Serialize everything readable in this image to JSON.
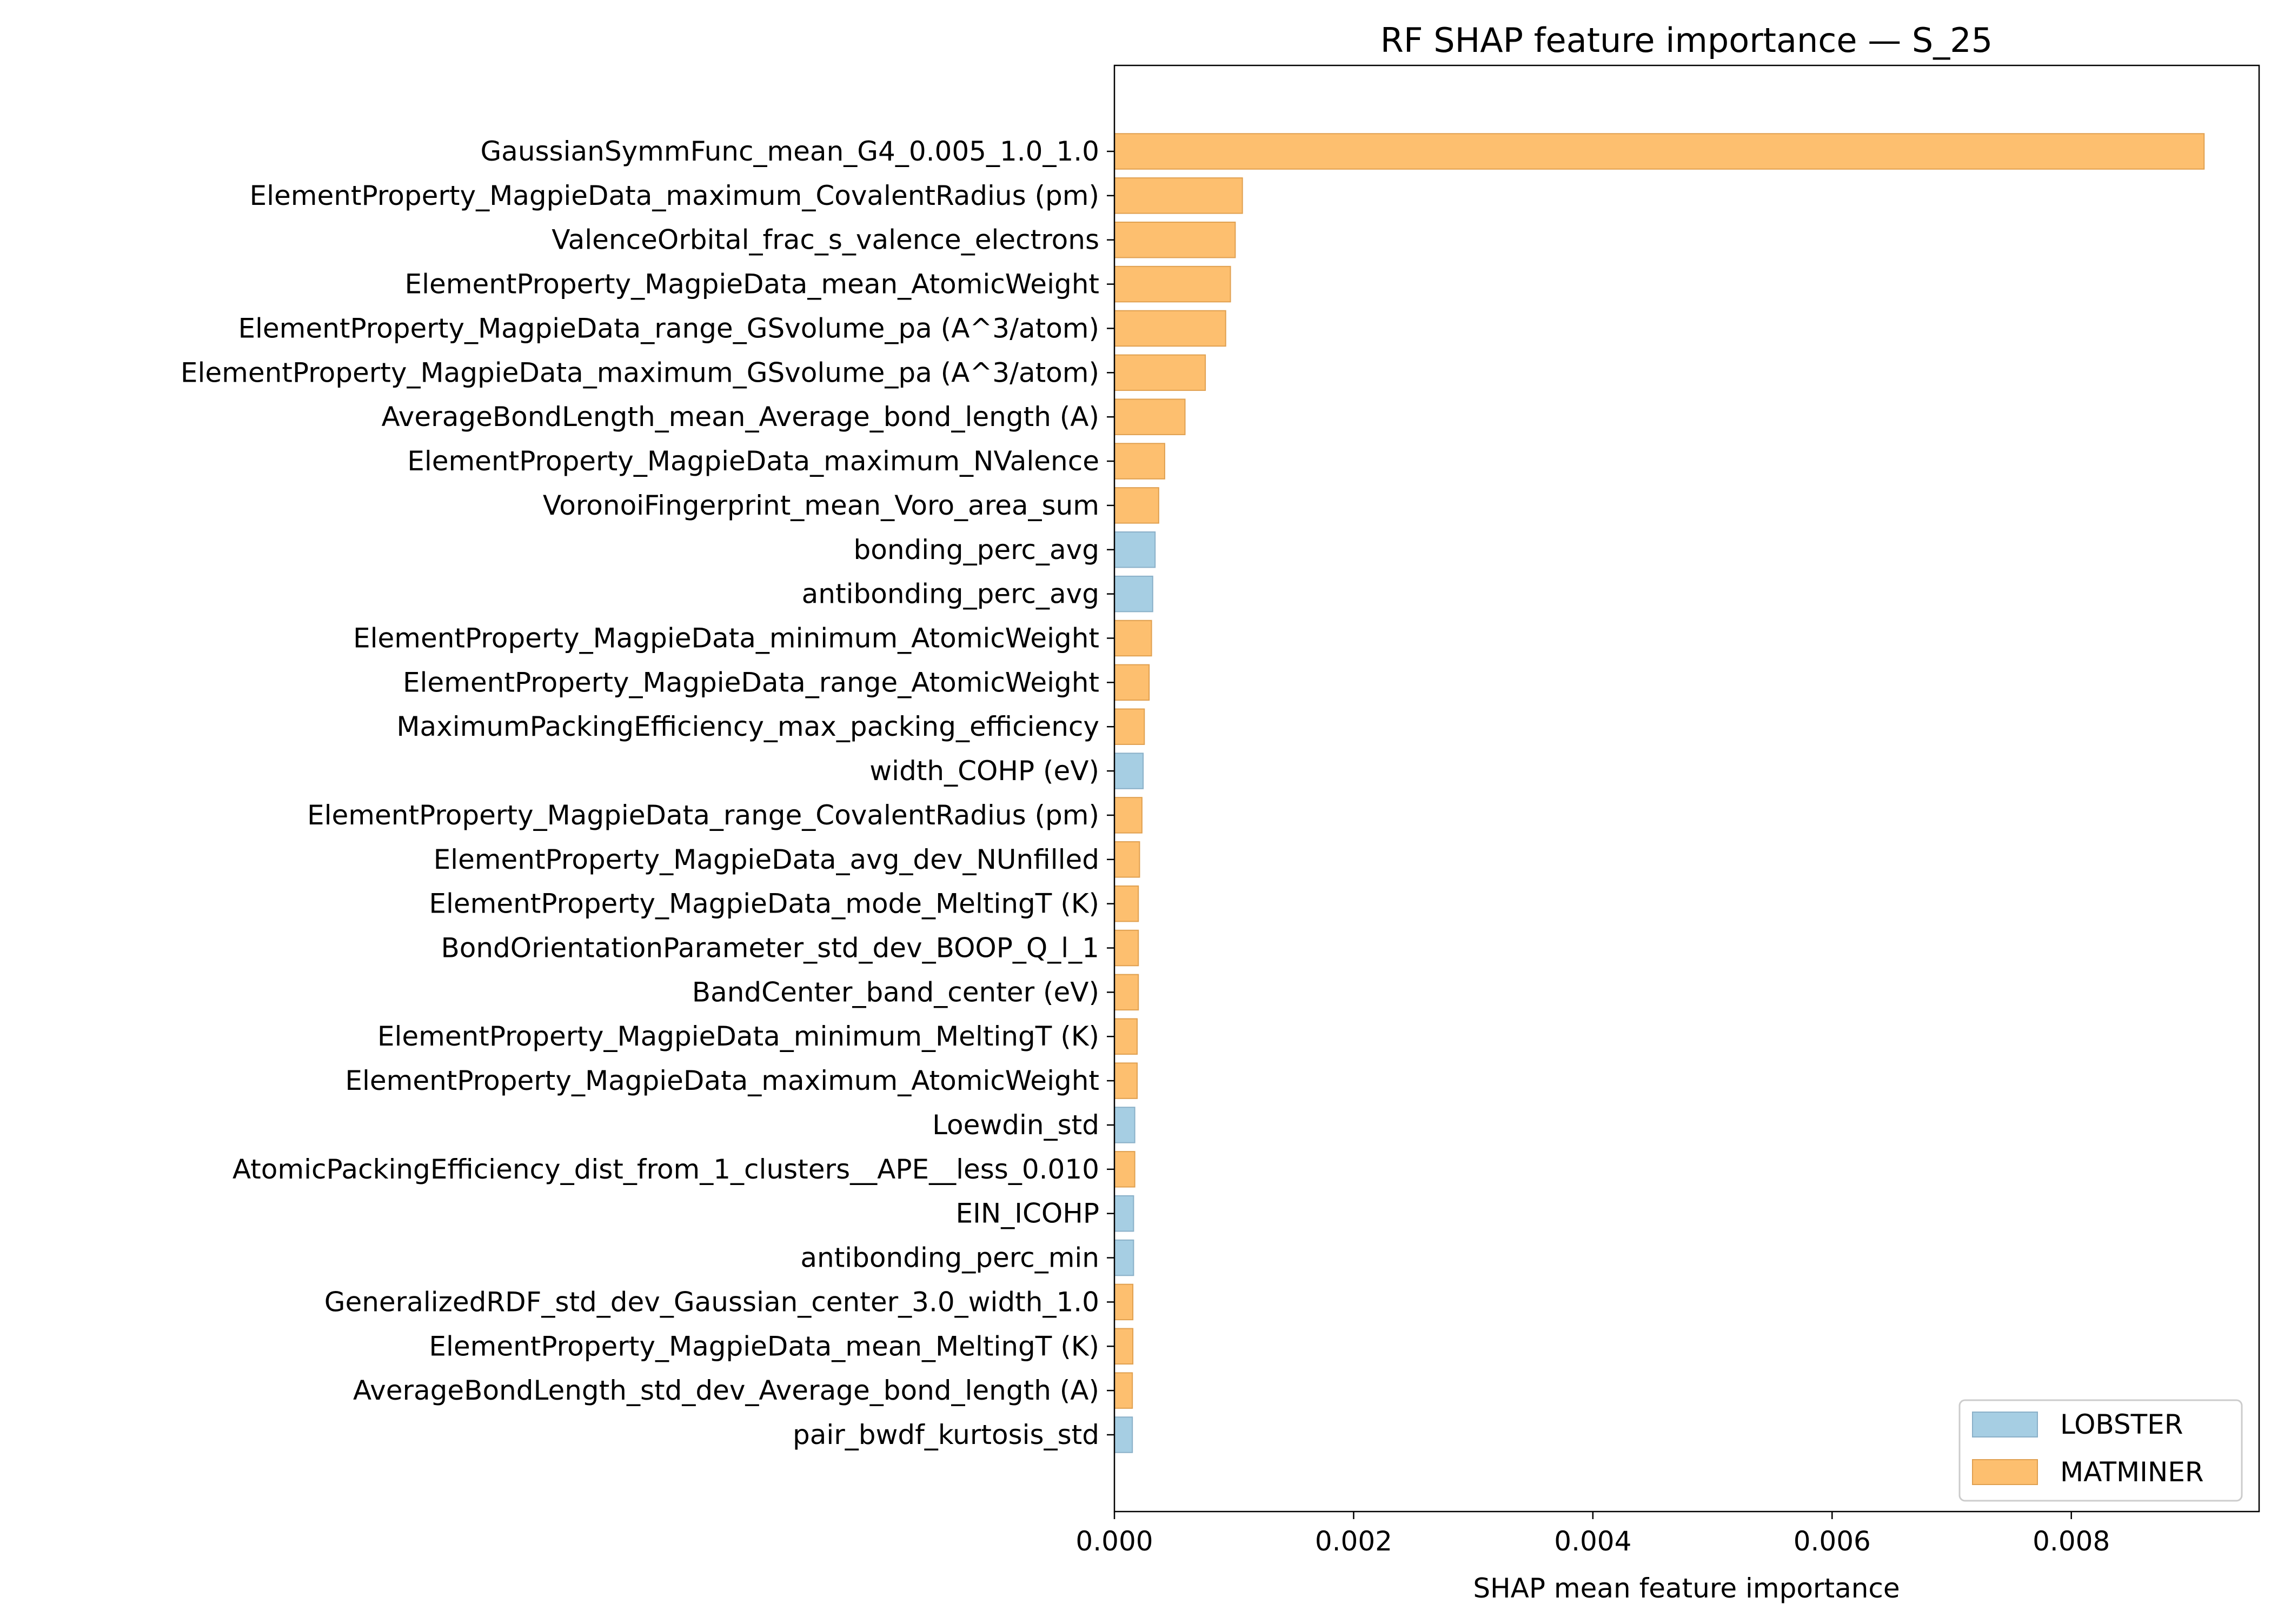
{
  "chart_data": {
    "type": "bar",
    "orientation": "horizontal",
    "title": "RF SHAP feature importance — S_25",
    "xlabel": "SHAP mean feature importance",
    "ylabel": "",
    "xlim": [
      0,
      0.00957
    ],
    "xticks": [
      "0.000",
      "0.002",
      "0.004",
      "0.006",
      "0.008"
    ],
    "xtick_values": [
      0,
      0.002,
      0.004,
      0.006,
      0.008
    ],
    "grid": false,
    "legend": {
      "placement": "lower-right",
      "entries": [
        {
          "name": "LOBSTER",
          "color": "#a6cee3"
        },
        {
          "name": "MATMINER",
          "color": "#fdbf6f"
        }
      ]
    },
    "bars": [
      {
        "label": "GaussianSymmFunc_mean_G4_0.005_1.0_1.0",
        "value": 0.00911,
        "group": "MATMINER"
      },
      {
        "label": "ElementProperty_MagpieData_maximum_CovalentRadius (pm)",
        "value": 0.00107,
        "group": "MATMINER"
      },
      {
        "label": "ValenceOrbital_frac_s_valence_electrons",
        "value": 0.00101,
        "group": "MATMINER"
      },
      {
        "label": "ElementProperty_MagpieData_mean_AtomicWeight",
        "value": 0.00097,
        "group": "MATMINER"
      },
      {
        "label": "ElementProperty_MagpieData_range_GSvolume_pa (A^3/atom)",
        "value": 0.00093,
        "group": "MATMINER"
      },
      {
        "label": "ElementProperty_MagpieData_maximum_GSvolume_pa (A^3/atom)",
        "value": 0.00076,
        "group": "MATMINER"
      },
      {
        "label": "AverageBondLength_mean_Average_bond_length (A)",
        "value": 0.00059,
        "group": "MATMINER"
      },
      {
        "label": "ElementProperty_MagpieData_maximum_NValence",
        "value": 0.00042,
        "group": "MATMINER"
      },
      {
        "label": "VoronoiFingerprint_mean_Voro_area_sum",
        "value": 0.00037,
        "group": "MATMINER"
      },
      {
        "label": "bonding_perc_avg",
        "value": 0.00034,
        "group": "LOBSTER"
      },
      {
        "label": "antibonding_perc_avg",
        "value": 0.00032,
        "group": "LOBSTER"
      },
      {
        "label": "ElementProperty_MagpieData_minimum_AtomicWeight",
        "value": 0.00031,
        "group": "MATMINER"
      },
      {
        "label": "ElementProperty_MagpieData_range_AtomicWeight",
        "value": 0.00029,
        "group": "MATMINER"
      },
      {
        "label": "MaximumPackingEfficiency_max_packing_efficiency",
        "value": 0.00025,
        "group": "MATMINER"
      },
      {
        "label": "width_COHP (eV)",
        "value": 0.00024,
        "group": "LOBSTER"
      },
      {
        "label": "ElementProperty_MagpieData_range_CovalentRadius (pm)",
        "value": 0.00023,
        "group": "MATMINER"
      },
      {
        "label": "ElementProperty_MagpieData_avg_dev_NUnfilled",
        "value": 0.00021,
        "group": "MATMINER"
      },
      {
        "label": "ElementProperty_MagpieData_mode_MeltingT (K)",
        "value": 0.0002,
        "group": "MATMINER"
      },
      {
        "label": "BondOrientationParameter_std_dev_BOOP_Q_l_1",
        "value": 0.0002,
        "group": "MATMINER"
      },
      {
        "label": "BandCenter_band_center (eV)",
        "value": 0.0002,
        "group": "MATMINER"
      },
      {
        "label": "ElementProperty_MagpieData_minimum_MeltingT (K)",
        "value": 0.00019,
        "group": "MATMINER"
      },
      {
        "label": "ElementProperty_MagpieData_maximum_AtomicWeight",
        "value": 0.00019,
        "group": "MATMINER"
      },
      {
        "label": "Loewdin_std",
        "value": 0.00017,
        "group": "LOBSTER"
      },
      {
        "label": "AtomicPackingEfficiency_dist_from_1_clusters__APE__less_0.010",
        "value": 0.00017,
        "group": "MATMINER"
      },
      {
        "label": "EIN_ICOHP",
        "value": 0.00016,
        "group": "LOBSTER"
      },
      {
        "label": "antibonding_perc_min",
        "value": 0.00016,
        "group": "LOBSTER"
      },
      {
        "label": "GeneralizedRDF_std_dev_Gaussian_center_3.0_width_1.0",
        "value": 0.000154,
        "group": "MATMINER"
      },
      {
        "label": "ElementProperty_MagpieData_mean_MeltingT (K)",
        "value": 0.000154,
        "group": "MATMINER"
      },
      {
        "label": "AverageBondLength_std_dev_Average_bond_length (A)",
        "value": 0.00015,
        "group": "MATMINER"
      },
      {
        "label": "pair_bwdf_kurtosis_std",
        "value": 0.00015,
        "group": "LOBSTER"
      }
    ]
  }
}
